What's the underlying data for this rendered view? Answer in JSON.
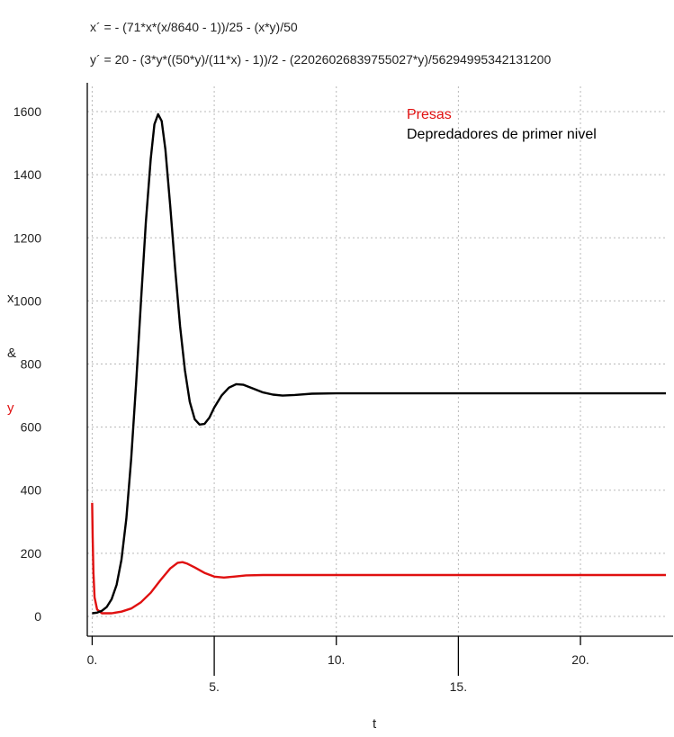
{
  "equations": {
    "x_prime": "x´ = - (71*x*(x/8640 - 1))/25 - (x*y)/50",
    "y_prime": "y´ = 20 - (3*y*((50*y)/(11*x) - 1))/2 - (22026026839755027*y)/56294995342131200"
  },
  "chart_data": {
    "type": "line",
    "xlabel": "t",
    "ylabel_parts": [
      "x",
      "&",
      "y"
    ],
    "xlim": [
      -0.2,
      23.5
    ],
    "ylim": [
      -60,
      1680
    ],
    "x_ticks": [
      {
        "value": 0,
        "label": "0."
      },
      {
        "value": 5,
        "label": "5."
      },
      {
        "value": 10,
        "label": "10."
      },
      {
        "value": 15,
        "label": "15."
      },
      {
        "value": 20,
        "label": "20."
      }
    ],
    "y_ticks": [
      0,
      200,
      400,
      600,
      800,
      1000,
      1200,
      1400,
      1600
    ],
    "grid": true,
    "legend_position": "top-right",
    "series": [
      {
        "name": "Presas",
        "color": "#e01010",
        "points": [
          [
            0,
            360
          ],
          [
            0.02,
            250
          ],
          [
            0.05,
            140
          ],
          [
            0.1,
            60
          ],
          [
            0.2,
            22
          ],
          [
            0.4,
            10
          ],
          [
            0.8,
            10
          ],
          [
            1.2,
            15
          ],
          [
            1.6,
            25
          ],
          [
            2.0,
            45
          ],
          [
            2.4,
            75
          ],
          [
            2.8,
            115
          ],
          [
            3.2,
            152
          ],
          [
            3.5,
            170
          ],
          [
            3.7,
            172
          ],
          [
            3.9,
            167
          ],
          [
            4.2,
            155
          ],
          [
            4.6,
            138
          ],
          [
            5.0,
            126
          ],
          [
            5.4,
            123
          ],
          [
            5.8,
            126
          ],
          [
            6.3,
            130
          ],
          [
            7,
            131
          ],
          [
            8,
            131
          ],
          [
            10,
            131
          ],
          [
            15,
            131
          ],
          [
            20,
            131
          ],
          [
            23.5,
            131
          ]
        ]
      },
      {
        "name": "Depredadores de primer nivel",
        "color": "#000000",
        "points": [
          [
            0,
            10
          ],
          [
            0.2,
            12
          ],
          [
            0.4,
            18
          ],
          [
            0.6,
            30
          ],
          [
            0.8,
            55
          ],
          [
            1.0,
            100
          ],
          [
            1.2,
            180
          ],
          [
            1.4,
            310
          ],
          [
            1.6,
            500
          ],
          [
            1.8,
            740
          ],
          [
            2.0,
            1000
          ],
          [
            2.2,
            1250
          ],
          [
            2.4,
            1450
          ],
          [
            2.55,
            1560
          ],
          [
            2.7,
            1592
          ],
          [
            2.85,
            1570
          ],
          [
            3.0,
            1480
          ],
          [
            3.2,
            1300
          ],
          [
            3.4,
            1100
          ],
          [
            3.6,
            920
          ],
          [
            3.8,
            780
          ],
          [
            4.0,
            680
          ],
          [
            4.2,
            625
          ],
          [
            4.4,
            608
          ],
          [
            4.6,
            610
          ],
          [
            4.8,
            630
          ],
          [
            5.0,
            662
          ],
          [
            5.3,
            700
          ],
          [
            5.6,
            725
          ],
          [
            5.9,
            736
          ],
          [
            6.2,
            734
          ],
          [
            6.6,
            722
          ],
          [
            7.0,
            710
          ],
          [
            7.4,
            703
          ],
          [
            7.8,
            700
          ],
          [
            8.3,
            702
          ],
          [
            9,
            706
          ],
          [
            10,
            707
          ],
          [
            15,
            707
          ],
          [
            20,
            707
          ],
          [
            23.5,
            707
          ]
        ]
      }
    ]
  }
}
